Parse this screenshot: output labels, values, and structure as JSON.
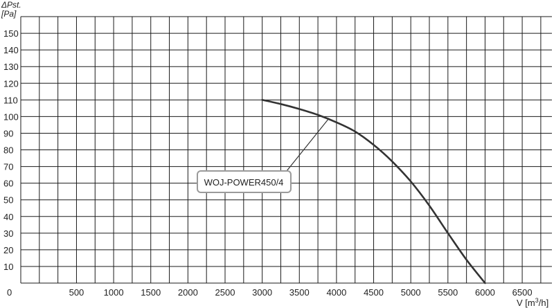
{
  "chart_data": {
    "type": "line",
    "title": "",
    "ylabel_line1": "ΔPst.",
    "ylabel_line2": "[Pa]",
    "xlabel_main": "V [m",
    "xlabel_sup": "3",
    "xlabel_end": "/h]",
    "xlim": [
      -250,
      6900
    ],
    "ylim": [
      0,
      160
    ],
    "x_ticks": [
      0,
      500,
      1000,
      1500,
      2000,
      2500,
      3000,
      3500,
      4000,
      4500,
      5000,
      5500,
      6000,
      6500
    ],
    "x_tick_labels": [
      "0",
      "500",
      "1000",
      "1500",
      "2000",
      "2500",
      "3000",
      "3500",
      "4000",
      "4500",
      "5000",
      "5500",
      "6000",
      "6500"
    ],
    "y_ticks": [
      10,
      20,
      30,
      40,
      50,
      60,
      70,
      80,
      90,
      100,
      110,
      120,
      130,
      140,
      150
    ],
    "y_tick_labels": [
      "10",
      "20",
      "30",
      "40",
      "50",
      "60",
      "70",
      "80",
      "90",
      "100",
      "110",
      "120",
      "130",
      "140",
      "150"
    ],
    "grid": true,
    "series": [
      {
        "name": "WOJ-POWER450/4",
        "x": [
          3000,
          3250,
          3500,
          3750,
          4000,
          4250,
          4500,
          4750,
          5000,
          5250,
          5500,
          5750,
          6000
        ],
        "y": [
          110,
          107.5,
          104.5,
          101,
          96.5,
          91,
          83,
          73,
          61,
          46.5,
          30,
          14,
          0
        ]
      }
    ],
    "annotations": [
      {
        "text": "WOJ-POWER450/4",
        "point": [
          3900,
          99
        ]
      }
    ]
  }
}
